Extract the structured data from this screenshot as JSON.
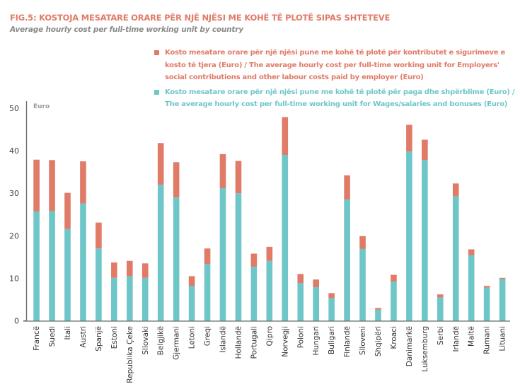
{
  "header": {
    "title": "FIG.5: KOSTOJA MESATARE ORARE PËR NJË NJËSI ME KOHË TË PLOTË SIPAS SHTETEVE",
    "subtitle": "Average hourly cost per full-time working unit by country"
  },
  "colors": {
    "contributions": "#e07b68",
    "wages": "#6ec6c9",
    "axis": "#6b6b6b"
  },
  "chart_data": {
    "type": "bar",
    "stacked": true,
    "title": "FIG.5: KOSTOJA MESATARE ORARE PËR NJË NJËSI ME KOHË TË PLOTË SIPAS SHTETEVE",
    "subtitle": "Average hourly cost per full-time working unit by country",
    "xlabel": "",
    "ylabel": "Euro",
    "ylim": [
      0,
      50
    ],
    "yticks": [
      0,
      10,
      20,
      30,
      40,
      50
    ],
    "grid": false,
    "legend_position": "top-right",
    "categories": [
      "Francë",
      "Suedi",
      "Itali",
      "Austri",
      "Spanjë",
      "Estoni",
      "Republika Çeke",
      "Sllovaki",
      "Belgjikë",
      "Gjermani",
      "Letoni",
      "Greqi",
      "Islandë",
      "Hollandë",
      "Portugali",
      "Qipro",
      "Norvegji",
      "Poloni",
      "Hungari",
      "Bullgari",
      "Finlandë",
      "Slloveni",
      "Shqipëri",
      "Kroaci",
      "Danimarkë",
      "Luksemburg",
      "Serbi",
      "Irlandë",
      "Maltë",
      "Rumani",
      "Lituani"
    ],
    "series": [
      {
        "name": "Kosto mesatare orare për një njësi pune me kohë të plotë për paga dhe shpërblime (Euro) / The average hourly cost per full-time working unit for Wages/salaries and bonuses (Euro)",
        "color": "#6ec6c9",
        "values": [
          25.7,
          25.8,
          21.6,
          27.6,
          17.0,
          10.1,
          10.5,
          10.1,
          32.0,
          29.0,
          8.2,
          13.4,
          31.2,
          30.0,
          12.7,
          14.1,
          39.0,
          8.9,
          7.9,
          5.3,
          28.5,
          16.9,
          2.6,
          9.2,
          39.8,
          37.8,
          5.5,
          29.3,
          15.4,
          7.8,
          9.8
        ]
      },
      {
        "name": "Kosto mesatare orare për një njësi pune me kohë të plotë për kontributet e sigurimeve e kosto të tjera (Euro) / The average hourly cost per full-time working unit for Employers' social contributions and other labour costs paid by employer (Euro)",
        "color": "#e07b68",
        "values": [
          12.2,
          12.0,
          8.5,
          9.9,
          6.1,
          3.6,
          3.6,
          3.4,
          9.8,
          8.3,
          2.3,
          3.6,
          8.0,
          7.6,
          3.1,
          3.3,
          8.9,
          2.1,
          1.8,
          1.2,
          5.7,
          3.0,
          0.4,
          1.6,
          6.3,
          4.8,
          0.7,
          3.0,
          1.4,
          0.4,
          0.3
        ]
      }
    ],
    "totals": [
      37.9,
      37.8,
      30.1,
      37.5,
      23.1,
      13.7,
      14.1,
      13.5,
      41.8,
      37.3,
      10.5,
      17.0,
      39.2,
      37.6,
      15.8,
      17.4,
      47.9,
      11.0,
      9.7,
      6.5,
      34.2,
      19.9,
      3.0,
      10.8,
      46.1,
      42.6,
      6.2,
      32.3,
      16.8,
      8.2,
      10.1
    ]
  },
  "legend": {
    "items": [
      {
        "label": "Kosto mesatare orare për një njësi pune me kohë të plotë për kontributet e sigurimeve e kosto të tjera (Euro) / The average hourly cost per full-time working unit for Employers' social contributions and other labour costs paid by employer (Euro)",
        "color": "#e07b68"
      },
      {
        "label": "Kosto mesatare orare për një njësi pune me kohë të plotë për paga dhe shpërblime (Euro) / The average hourly cost per full-time working unit for Wages/salaries and bonuses (Euro)",
        "color": "#6ec6c9"
      }
    ]
  },
  "axis": {
    "unit_label": "Euro"
  }
}
